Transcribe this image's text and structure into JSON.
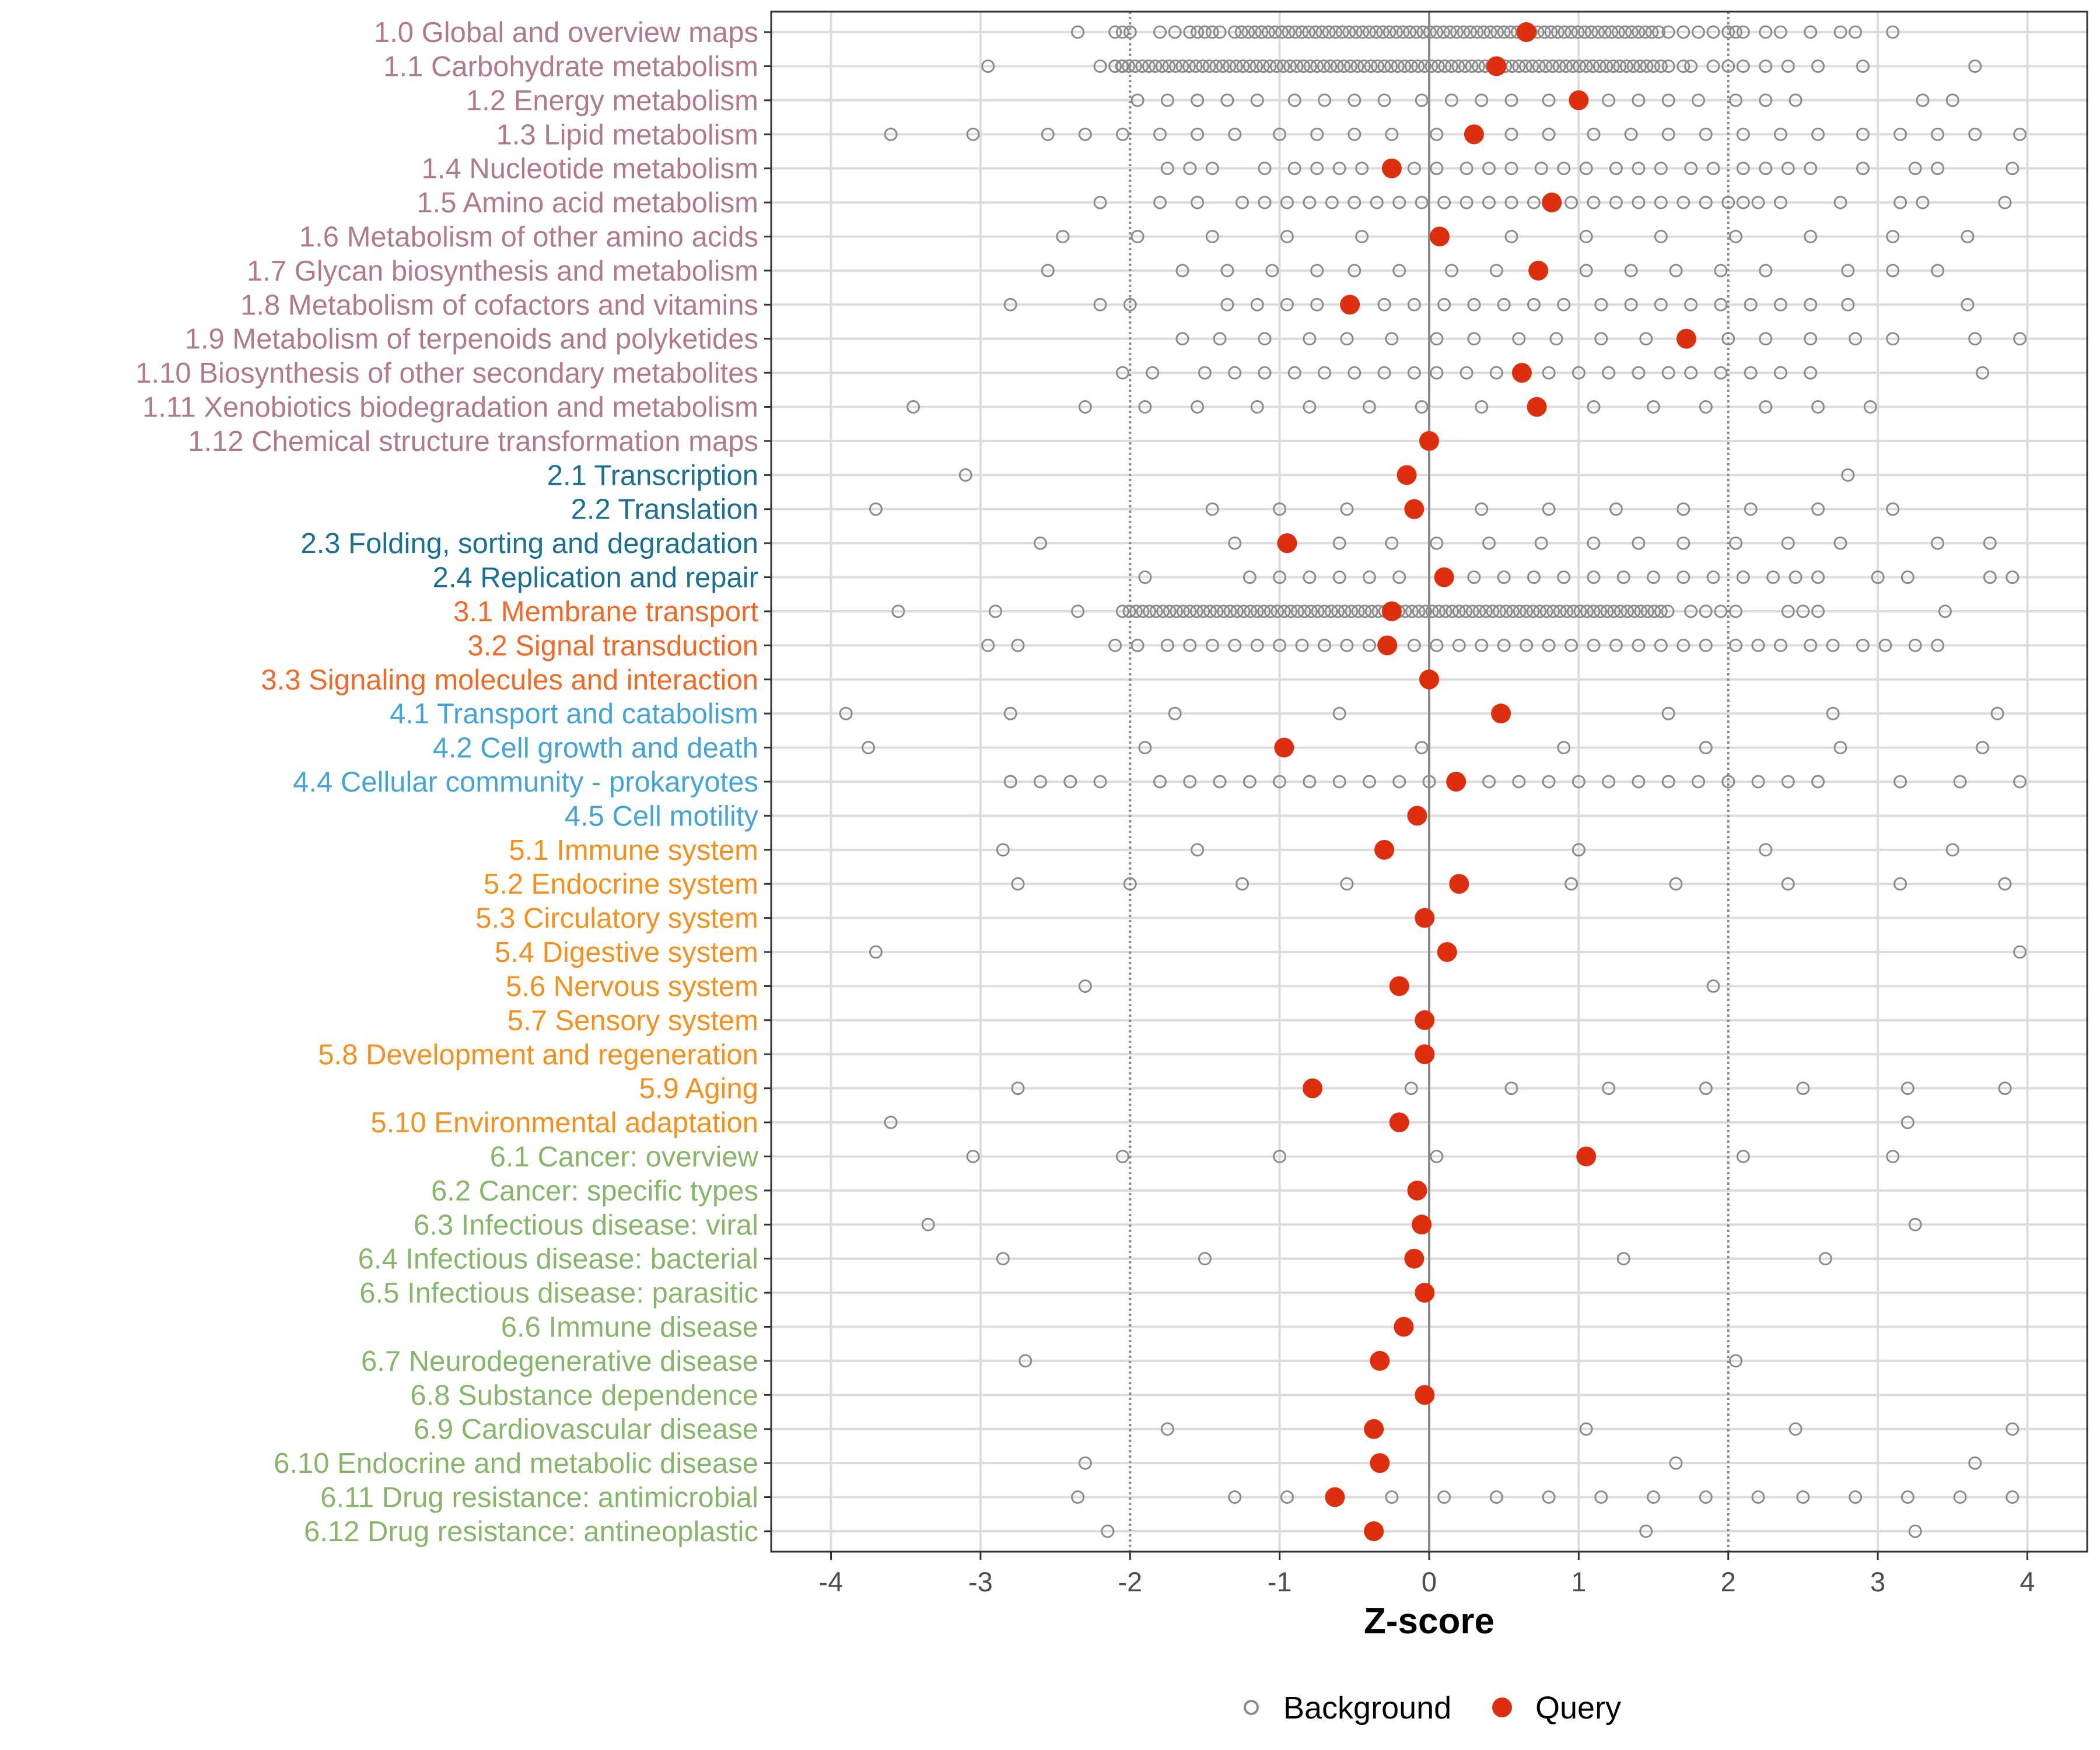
{
  "chart_data": {
    "type": "scatter",
    "xlabel": "Z-score",
    "xlim": [
      -4.4,
      4.4
    ],
    "x_ticks": [
      "-4",
      "-3",
      "-2",
      "-1",
      "0",
      "1",
      "2",
      "3",
      "4"
    ],
    "threshold_lines": [
      -2,
      2
    ],
    "zero_line": 0,
    "grid": true,
    "legend_position": "bottom",
    "legend": [
      {
        "label": "Background",
        "marker": "open-circle",
        "color": "#8c8c8c"
      },
      {
        "label": "Query",
        "marker": "filled-circle",
        "color": "#dd2e0d"
      }
    ],
    "group_colors": {
      "1": "#b07a8c",
      "2": "#1b6f91",
      "3": "#f06a27",
      "4": "#46a3d6",
      "5": "#f4901e",
      "6": "#87b56a"
    },
    "categories": [
      {
        "label": "1.0 Global and overview maps",
        "group": "1",
        "query": 0.65,
        "dense": [
          -1.3,
          1.55
        ],
        "background": [
          -2.35,
          -2.1,
          -2.05,
          -2.0,
          -1.8,
          -1.7,
          -1.6,
          -1.55,
          -1.5,
          -1.45,
          -1.4,
          1.6,
          1.7,
          1.8,
          1.9,
          2.0,
          2.05,
          2.1,
          2.25,
          2.35,
          2.55,
          2.75,
          2.85,
          3.1
        ]
      },
      {
        "label": "1.1 Carbohydrate metabolism",
        "group": "1",
        "query": 0.45,
        "dense": [
          -2.1,
          1.5
        ],
        "background": [
          -2.95,
          -2.2,
          -2.1,
          -2.05,
          1.55,
          1.6,
          1.7,
          1.75,
          1.9,
          2.0,
          2.1,
          2.25,
          2.4,
          2.6,
          2.9,
          3.65
        ]
      },
      {
        "label": "1.2 Energy metabolism",
        "group": "1",
        "query": 1.0,
        "background": [
          -1.95,
          -1.75,
          -1.55,
          -1.35,
          -1.15,
          -0.9,
          -0.7,
          -0.5,
          -0.3,
          -0.05,
          0.15,
          0.35,
          0.55,
          0.8,
          1.2,
          1.4,
          1.6,
          1.8,
          2.05,
          2.25,
          2.45,
          3.3,
          3.5
        ]
      },
      {
        "label": "1.3 Lipid metabolism",
        "group": "1",
        "query": 0.3,
        "background": [
          -3.6,
          -3.05,
          -2.55,
          -2.3,
          -2.05,
          -1.8,
          -1.55,
          -1.3,
          -1.0,
          -0.75,
          -0.5,
          -0.25,
          0.05,
          0.55,
          0.8,
          1.1,
          1.35,
          1.6,
          1.85,
          2.1,
          2.35,
          2.6,
          2.9,
          3.15,
          3.4,
          3.65,
          3.95
        ]
      },
      {
        "label": "1.4 Nucleotide metabolism",
        "group": "1",
        "query": -0.25,
        "background": [
          -1.75,
          -1.6,
          -1.45,
          -1.1,
          -0.9,
          -0.75,
          -0.6,
          -0.45,
          -0.1,
          0.05,
          0.25,
          0.4,
          0.55,
          0.75,
          0.9,
          1.05,
          1.25,
          1.4,
          1.55,
          1.75,
          1.9,
          2.1,
          2.25,
          2.4,
          2.55,
          2.9,
          3.25,
          3.4,
          3.9
        ]
      },
      {
        "label": "1.5 Amino acid metabolism",
        "group": "1",
        "query": 0.82,
        "background": [
          -2.2,
          -1.8,
          -1.55,
          -1.25,
          -1.1,
          -0.95,
          -0.8,
          -0.65,
          -0.5,
          -0.35,
          -0.2,
          -0.05,
          0.1,
          0.25,
          0.4,
          0.55,
          0.7,
          0.95,
          1.1,
          1.25,
          1.4,
          1.55,
          1.7,
          1.85,
          2.0,
          2.1,
          2.2,
          2.35,
          2.75,
          3.15,
          3.3,
          3.85
        ]
      },
      {
        "label": "1.6 Metabolism of other amino acids",
        "group": "1",
        "query": 0.07,
        "background": [
          -2.45,
          -1.95,
          -1.45,
          -0.95,
          -0.45,
          0.55,
          1.05,
          1.55,
          2.05,
          2.55,
          3.1,
          3.6
        ]
      },
      {
        "label": "1.7 Glycan biosynthesis and metabolism",
        "group": "1",
        "query": 0.73,
        "background": [
          -2.55,
          -1.65,
          -1.35,
          -1.05,
          -0.75,
          -0.5,
          -0.2,
          0.15,
          0.45,
          1.05,
          1.35,
          1.65,
          1.95,
          2.25,
          2.8,
          3.1,
          3.4
        ]
      },
      {
        "label": "1.8 Metabolism of cofactors and vitamins",
        "group": "1",
        "query": -0.53,
        "background": [
          -2.8,
          -2.2,
          -2.0,
          -1.35,
          -1.15,
          -0.95,
          -0.75,
          -0.3,
          -0.1,
          0.1,
          0.3,
          0.5,
          0.7,
          0.9,
          1.15,
          1.35,
          1.55,
          1.75,
          1.95,
          2.15,
          2.35,
          2.55,
          2.8,
          3.6
        ]
      },
      {
        "label": "1.9 Metabolism of terpenoids and polyketides",
        "group": "1",
        "query": 1.72,
        "background": [
          -1.65,
          -1.4,
          -1.1,
          -0.8,
          -0.55,
          -0.25,
          0.05,
          0.3,
          0.6,
          0.85,
          1.15,
          1.45,
          2.0,
          2.25,
          2.55,
          2.85,
          3.1,
          3.65,
          3.95
        ]
      },
      {
        "label": "1.10 Biosynthesis of other secondary metabolites",
        "group": "1",
        "query": 0.62,
        "background": [
          -2.05,
          -1.85,
          -1.5,
          -1.3,
          -1.1,
          -0.9,
          -0.7,
          -0.5,
          -0.3,
          -0.1,
          0.05,
          0.25,
          0.45,
          0.8,
          1.0,
          1.2,
          1.4,
          1.6,
          1.75,
          1.95,
          2.15,
          2.35,
          2.55,
          3.7
        ]
      },
      {
        "label": "1.11 Xenobiotics biodegradation and metabolism",
        "group": "1",
        "query": 0.72,
        "background": [
          -3.45,
          -2.3,
          -1.9,
          -1.55,
          -1.15,
          -0.8,
          -0.4,
          -0.05,
          0.35,
          1.1,
          1.5,
          1.85,
          2.25,
          2.6,
          2.95
        ]
      },
      {
        "label": "1.12 Chemical structure transformation maps",
        "group": "1",
        "query": 0.0,
        "background": []
      },
      {
        "label": "2.1 Transcription",
        "group": "2",
        "query": -0.15,
        "background": [
          -3.1,
          2.8
        ]
      },
      {
        "label": "2.2 Translation",
        "group": "2",
        "query": -0.1,
        "background": [
          -3.7,
          -1.45,
          -1.0,
          -0.55,
          0.35,
          0.8,
          1.25,
          1.7,
          2.15,
          2.6,
          3.1
        ]
      },
      {
        "label": "2.3 Folding, sorting and degradation",
        "group": "2",
        "query": -0.95,
        "background": [
          -2.6,
          -1.3,
          -0.6,
          -0.25,
          0.05,
          0.4,
          0.75,
          1.1,
          1.4,
          1.7,
          2.05,
          2.4,
          2.75,
          3.4,
          3.75
        ]
      },
      {
        "label": "2.4 Replication and repair",
        "group": "2",
        "query": 0.1,
        "background": [
          -1.9,
          -1.2,
          -1.0,
          -0.8,
          -0.6,
          -0.4,
          -0.2,
          0.3,
          0.5,
          0.7,
          0.9,
          1.1,
          1.3,
          1.5,
          1.7,
          1.9,
          2.1,
          2.3,
          2.45,
          2.6,
          3.0,
          3.2,
          3.75,
          3.9
        ]
      },
      {
        "label": "3.1 Membrane transport",
        "group": "3",
        "query": -0.25,
        "dense": [
          -2.05,
          1.6
        ],
        "background": [
          -3.55,
          -2.9,
          -2.35,
          1.75,
          1.85,
          1.95,
          2.05,
          2.4,
          2.5,
          2.6,
          3.45
        ]
      },
      {
        "label": "3.2 Signal transduction",
        "group": "3",
        "query": -0.28,
        "background": [
          -2.95,
          -2.75,
          -2.1,
          -1.95,
          -1.75,
          -1.6,
          -1.45,
          -1.3,
          -1.15,
          -1.0,
          -0.85,
          -0.7,
          -0.55,
          -0.4,
          -0.1,
          0.05,
          0.2,
          0.35,
          0.5,
          0.65,
          0.8,
          0.95,
          1.1,
          1.25,
          1.4,
          1.55,
          1.7,
          1.85,
          2.05,
          2.2,
          2.35,
          2.55,
          2.7,
          2.9,
          3.05,
          3.25,
          3.4
        ]
      },
      {
        "label": "3.3 Signaling molecules and interaction",
        "group": "3",
        "query": 0.0,
        "background": []
      },
      {
        "label": "4.1 Transport and catabolism",
        "group": "4",
        "query": 0.48,
        "background": [
          -3.9,
          -2.8,
          -1.7,
          -0.6,
          1.6,
          2.7,
          3.8
        ]
      },
      {
        "label": "4.2 Cell growth and death",
        "group": "4",
        "query": -0.97,
        "background": [
          -3.75,
          -1.9,
          -0.05,
          0.9,
          1.85,
          2.75,
          3.7
        ]
      },
      {
        "label": "4.4 Cellular community - prokaryotes",
        "group": "4",
        "query": 0.18,
        "background": [
          -2.8,
          -2.6,
          -2.4,
          -2.2,
          -1.8,
          -1.6,
          -1.4,
          -1.2,
          -1.0,
          -0.8,
          -0.6,
          -0.4,
          -0.2,
          0.0,
          0.4,
          0.6,
          0.8,
          1.0,
          1.2,
          1.4,
          1.6,
          1.8,
          2.0,
          2.2,
          2.4,
          2.6,
          3.15,
          3.55,
          3.95
        ]
      },
      {
        "label": "4.5 Cell motility",
        "group": "4",
        "query": -0.08,
        "background": []
      },
      {
        "label": "5.1 Immune system",
        "group": "5",
        "query": -0.3,
        "background": [
          -2.85,
          -1.55,
          1.0,
          2.25,
          3.5
        ]
      },
      {
        "label": "5.2 Endocrine system",
        "group": "5",
        "query": 0.2,
        "background": [
          -2.75,
          -2.0,
          -1.25,
          -0.55,
          0.95,
          1.65,
          2.4,
          3.15,
          3.85
        ]
      },
      {
        "label": "5.3 Circulatory system",
        "group": "5",
        "query": -0.03,
        "background": []
      },
      {
        "label": "5.4 Digestive system",
        "group": "5",
        "query": 0.12,
        "background": [
          -3.7,
          3.95
        ]
      },
      {
        "label": "5.6 Nervous system",
        "group": "5",
        "query": -0.2,
        "background": [
          -2.3,
          1.9
        ]
      },
      {
        "label": "5.7 Sensory system",
        "group": "5",
        "query": -0.03,
        "background": []
      },
      {
        "label": "5.8 Development and regeneration",
        "group": "5",
        "query": -0.03,
        "background": []
      },
      {
        "label": "5.9 Aging",
        "group": "5",
        "query": -0.78,
        "background": [
          -2.75,
          -0.12,
          0.55,
          1.2,
          1.85,
          2.5,
          3.2,
          3.85
        ]
      },
      {
        "label": "5.10 Environmental adaptation",
        "group": "5",
        "query": -0.2,
        "background": [
          -3.6,
          3.2
        ]
      },
      {
        "label": "6.1 Cancer: overview",
        "group": "6",
        "query": 1.05,
        "background": [
          -3.05,
          -2.05,
          -1.0,
          0.05,
          2.1,
          3.1
        ]
      },
      {
        "label": "6.2 Cancer: specific types",
        "group": "6",
        "query": -0.08,
        "background": []
      },
      {
        "label": "6.3 Infectious disease: viral",
        "group": "6",
        "query": -0.05,
        "background": [
          -3.35,
          3.25
        ]
      },
      {
        "label": "6.4 Infectious disease: bacterial",
        "group": "6",
        "query": -0.1,
        "background": [
          -2.85,
          -1.5,
          1.3,
          2.65
        ]
      },
      {
        "label": "6.5 Infectious disease: parasitic",
        "group": "6",
        "query": -0.03,
        "background": []
      },
      {
        "label": "6.6 Immune disease",
        "group": "6",
        "query": -0.17,
        "background": []
      },
      {
        "label": "6.7 Neurodegenerative disease",
        "group": "6",
        "query": -0.33,
        "background": [
          -2.7,
          2.05
        ]
      },
      {
        "label": "6.8 Substance dependence",
        "group": "6",
        "query": -0.03,
        "background": []
      },
      {
        "label": "6.9 Cardiovascular disease",
        "group": "6",
        "query": -0.37,
        "background": [
          -1.75,
          1.05,
          2.45,
          3.9
        ]
      },
      {
        "label": "6.10 Endocrine and metabolic disease",
        "group": "6",
        "query": -0.33,
        "background": [
          -2.3,
          1.65,
          3.65
        ]
      },
      {
        "label": "6.11 Drug resistance: antimicrobial",
        "group": "6",
        "query": -0.63,
        "background": [
          -2.35,
          -1.3,
          -0.95,
          -0.25,
          0.1,
          0.45,
          0.8,
          1.15,
          1.5,
          1.85,
          2.2,
          2.5,
          2.85,
          3.2,
          3.55,
          3.9
        ]
      },
      {
        "label": "6.12 Drug resistance: antineoplastic",
        "group": "6",
        "query": -0.37,
        "background": [
          -2.15,
          1.45,
          3.25
        ]
      }
    ]
  }
}
